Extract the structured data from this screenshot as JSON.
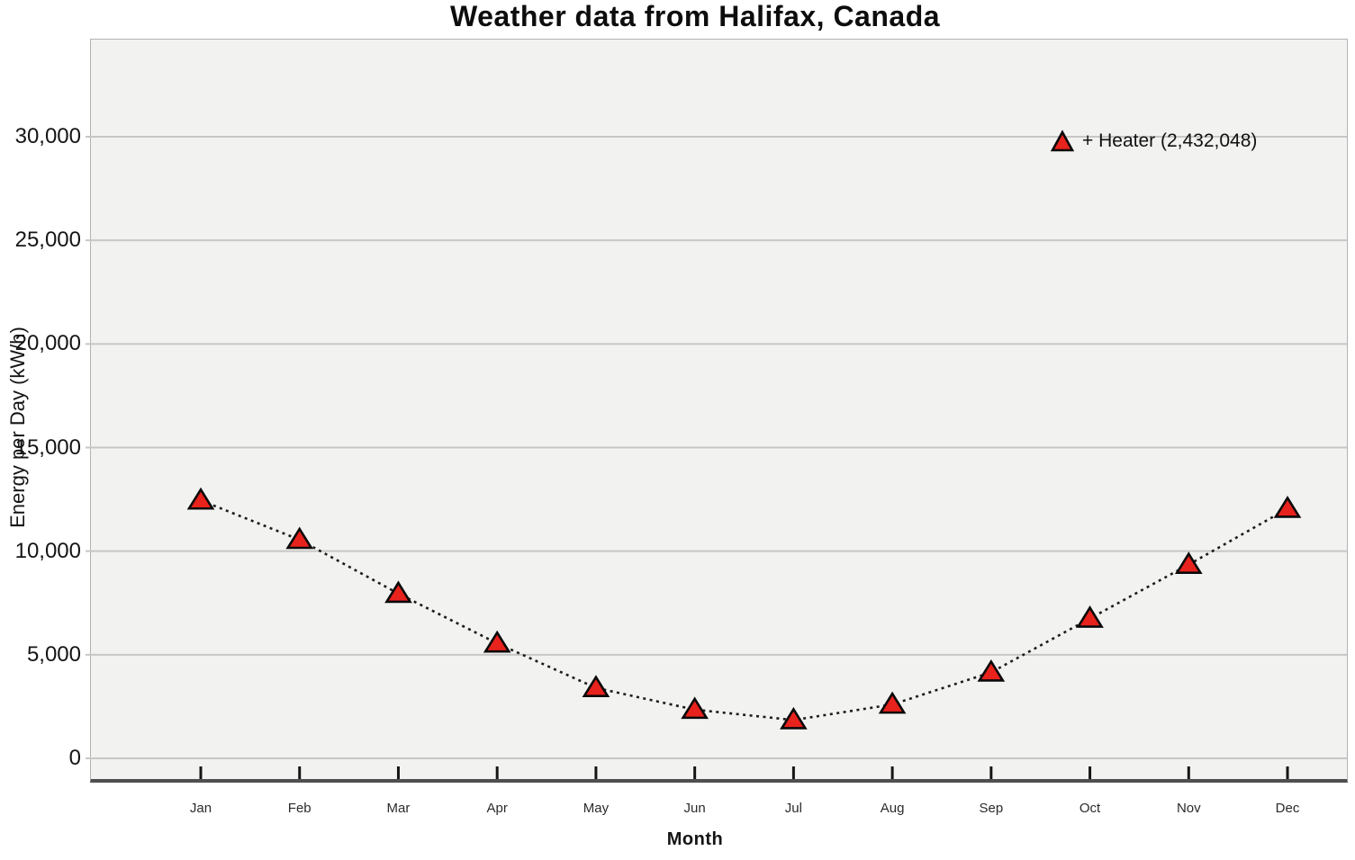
{
  "title": "Weather data from Halifax, Canada",
  "axes": {
    "x_title": "Month",
    "y_title": "Energy per Day (kW/h)"
  },
  "legend": {
    "label": "+ Heater (2,432,048)",
    "series_name": "Heater",
    "series_total": "2,432,048",
    "marker": "triangle-icon"
  },
  "colors": {
    "marker_fill": "#e8221c",
    "marker_stroke": "#0a0a0a",
    "line": "#1c1c1c",
    "plot_bg": "#f2f2f1",
    "grid": "#c7c7c6",
    "axis": "#4f4f4f"
  },
  "chart_data": {
    "type": "line",
    "title": "Weather data from Halifax, Canada",
    "xlabel": "Month",
    "ylabel": "Energy per Day (kW/h)",
    "categories": [
      "Jan",
      "Feb",
      "Mar",
      "Apr",
      "May",
      "Jun",
      "Jul",
      "Aug",
      "Sep",
      "Oct",
      "Nov",
      "Dec"
    ],
    "series": [
      {
        "name": "Heater",
        "legend_label": "+ Heater (2,432,048)",
        "marker": "triangle",
        "line_style": "dotted",
        "values": [
          12450,
          10550,
          7950,
          5550,
          3400,
          2350,
          1850,
          2600,
          4150,
          6750,
          9350,
          12050
        ]
      }
    ],
    "y_ticks": [
      {
        "value": 0,
        "label": "0"
      },
      {
        "value": 5000,
        "label": "5,000"
      },
      {
        "value": 10000,
        "label": "10,000"
      },
      {
        "value": 15000,
        "label": "15,000"
      },
      {
        "value": 20000,
        "label": "20,000"
      },
      {
        "value": 25000,
        "label": "25,000"
      },
      {
        "value": 30000,
        "label": "30,000"
      }
    ],
    "ylim": [
      -1200,
      34800
    ],
    "grid": true,
    "legend_position": "top-right"
  }
}
